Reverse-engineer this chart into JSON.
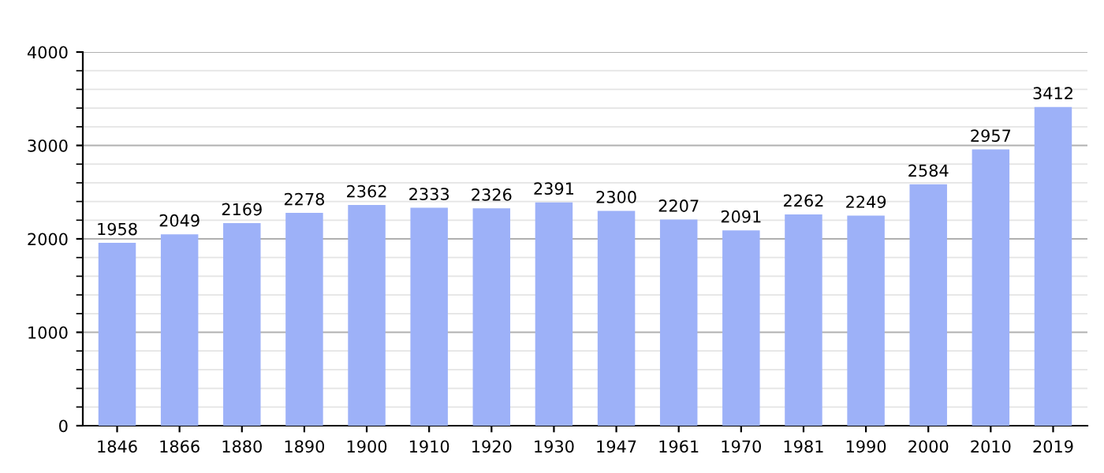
{
  "chart_data": {
    "type": "bar",
    "categories": [
      "1846",
      "1866",
      "1880",
      "1890",
      "1900",
      "1910",
      "1920",
      "1930",
      "1947",
      "1961",
      "1970",
      "1981",
      "1990",
      "2000",
      "2010",
      "2019"
    ],
    "values": [
      1958,
      2049,
      2169,
      2278,
      2362,
      2333,
      2326,
      2391,
      2300,
      2207,
      2091,
      2262,
      2249,
      2584,
      2957,
      3412
    ],
    "color": "#9db1f8",
    "ylim": [
      0,
      4000
    ],
    "yticks": [
      0,
      1000,
      2000,
      3000,
      4000
    ],
    "grid": "y",
    "data_labels": true
  }
}
